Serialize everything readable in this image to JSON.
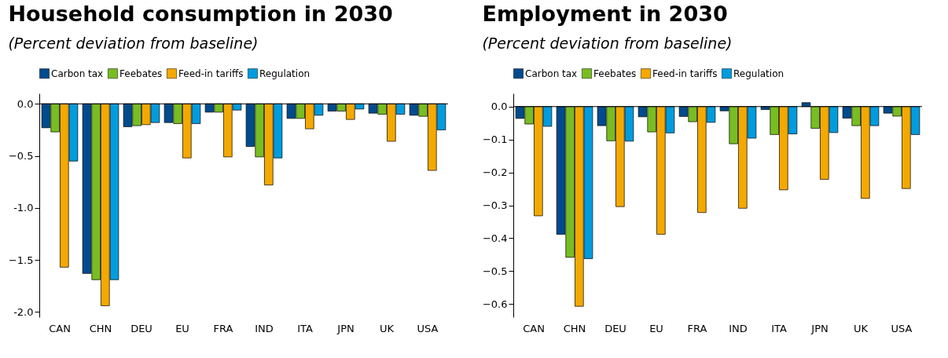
{
  "chart_data": [
    {
      "type": "bar",
      "title": "Household consumption in 2030",
      "subtitle": "(Percent deviation from baseline)",
      "categories": [
        "CAN",
        "CHN",
        "DEU",
        "EU",
        "FRA",
        "IND",
        "ITA",
        "JPN",
        "UK",
        "USA"
      ],
      "series": [
        {
          "name": "Carbon tax",
          "color": "#004b8d",
          "values": [
            -0.23,
            -1.63,
            -0.22,
            -0.18,
            -0.08,
            -0.41,
            -0.14,
            -0.07,
            -0.09,
            -0.11
          ]
        },
        {
          "name": "Feebates",
          "color": "#78bd22",
          "values": [
            -0.27,
            -1.69,
            -0.21,
            -0.19,
            -0.08,
            -0.51,
            -0.14,
            -0.07,
            -0.1,
            -0.12
          ]
        },
        {
          "name": "Feed-in tariffs",
          "color": "#f4a900",
          "values": [
            -1.57,
            -1.94,
            -0.2,
            -0.52,
            -0.51,
            -0.78,
            -0.24,
            -0.15,
            -0.36,
            -0.64
          ]
        },
        {
          "name": "Regulation",
          "color": "#009cde",
          "values": [
            -0.55,
            -1.69,
            -0.18,
            -0.19,
            -0.06,
            -0.52,
            -0.11,
            -0.05,
            -0.1,
            -0.25
          ]
        }
      ],
      "ylim": [
        -2.05,
        0.1
      ],
      "yticks": [
        {
          "value": 0,
          "label": "0.0"
        },
        -0.5,
        {
          "value": -1,
          "label": "-1.0"
        },
        -1.5,
        {
          "value": -2,
          "label": "-2.0"
        }
      ],
      "legend": "top"
    },
    {
      "type": "bar",
      "title": "Employment in 2030",
      "subtitle": "(Percent deviation from baseline)",
      "categories": [
        "CAN",
        "CHN",
        "DEU",
        "EU",
        "FRA",
        "IND",
        "ITA",
        "JPN",
        "UK",
        "USA"
      ],
      "series": [
        {
          "name": "Carbon tax",
          "color": "#004b8d",
          "values": [
            -0.036,
            -0.388,
            -0.058,
            -0.031,
            -0.03,
            -0.013,
            -0.009,
            0.012,
            -0.035,
            -0.02
          ]
        },
        {
          "name": "Feebates",
          "color": "#78bd22",
          "values": [
            -0.053,
            -0.458,
            -0.104,
            -0.077,
            -0.046,
            -0.113,
            -0.085,
            -0.066,
            -0.058,
            -0.029
          ]
        },
        {
          "name": "Feed-in tariffs",
          "color": "#f4a900",
          "values": [
            -0.332,
            -0.607,
            -0.304,
            -0.388,
            -0.322,
            -0.309,
            -0.253,
            -0.221,
            -0.279,
            -0.249
          ]
        },
        {
          "name": "Regulation",
          "color": "#009cde",
          "values": [
            -0.06,
            -0.462,
            -0.105,
            -0.08,
            -0.048,
            -0.096,
            -0.083,
            -0.079,
            -0.058,
            -0.085
          ]
        }
      ],
      "ylim": [
        -0.64,
        0.04
      ],
      "yticks": [
        {
          "value": 0,
          "label": "0.0"
        },
        -0.1,
        -0.2,
        -0.3,
        -0.4,
        -0.5,
        -0.6
      ],
      "legend": "top"
    }
  ]
}
